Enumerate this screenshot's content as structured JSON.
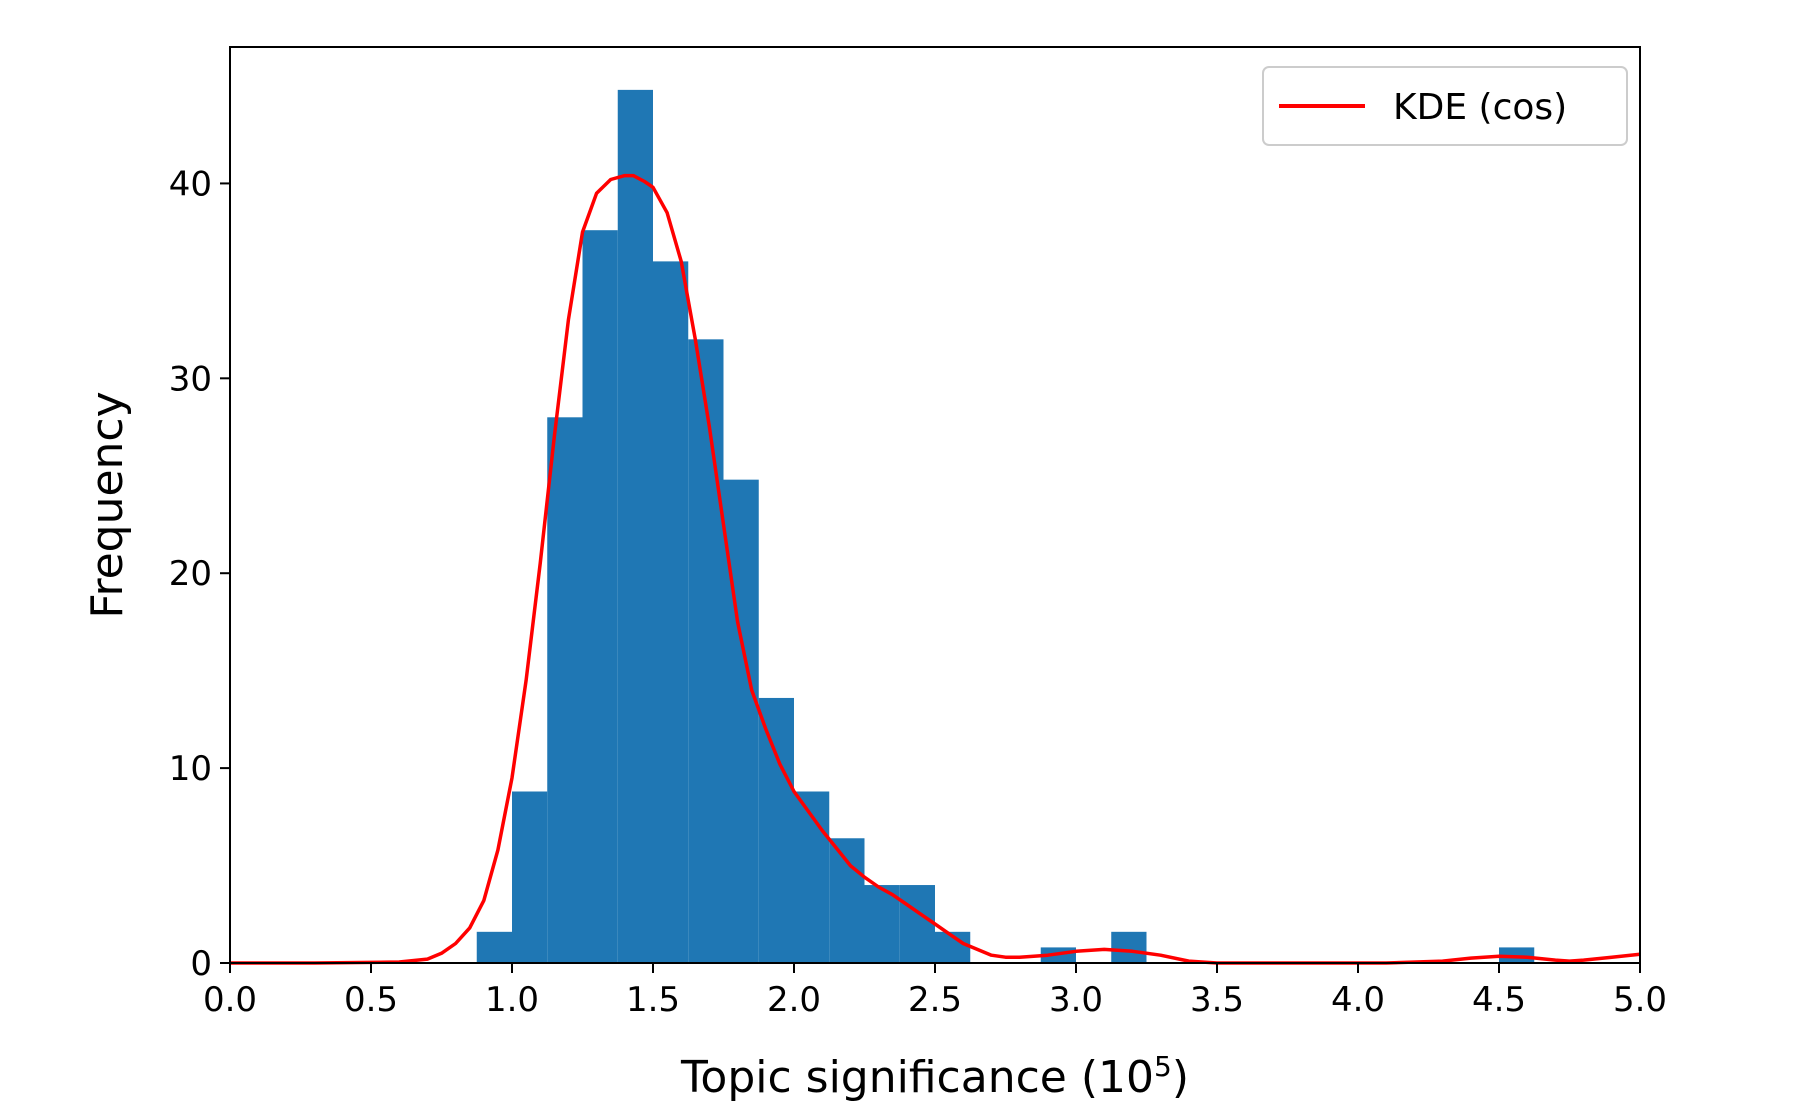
{
  "chart_data": {
    "type": "bar",
    "subtype": "histogram-with-kde",
    "xlabel": "Topic significance (10",
    "xlabel_superscript": "5",
    "xlabel_close": ")",
    "ylabel": "Frequency",
    "xlim": [
      0.0,
      5.0
    ],
    "ylim": [
      0,
      47
    ],
    "xticks": [
      "0.0",
      "0.5",
      "1.0",
      "1.5",
      "2.0",
      "2.5",
      "3.0",
      "3.5",
      "4.0",
      "4.5",
      "5.0"
    ],
    "yticks": [
      "0",
      "10",
      "20",
      "30",
      "40"
    ],
    "grid": false,
    "legend_position": "top-right",
    "histogram": {
      "color": "#1f77b4",
      "bins": [
        {
          "x0": 0.875,
          "x1": 1.0,
          "value": 1.6
        },
        {
          "x0": 1.0,
          "x1": 1.125,
          "value": 8.8
        },
        {
          "x0": 1.125,
          "x1": 1.25,
          "value": 28.0
        },
        {
          "x0": 1.25,
          "x1": 1.375,
          "value": 37.6
        },
        {
          "x0": 1.375,
          "x1": 1.5,
          "value": 44.8
        },
        {
          "x0": 1.5,
          "x1": 1.625,
          "value": 36.0
        },
        {
          "x0": 1.625,
          "x1": 1.75,
          "value": 32.0
        },
        {
          "x0": 1.75,
          "x1": 1.875,
          "value": 24.8
        },
        {
          "x0": 1.875,
          "x1": 2.0,
          "value": 13.6
        },
        {
          "x0": 2.0,
          "x1": 2.125,
          "value": 8.8
        },
        {
          "x0": 2.125,
          "x1": 2.25,
          "value": 6.4
        },
        {
          "x0": 2.25,
          "x1": 2.375,
          "value": 4.0
        },
        {
          "x0": 2.375,
          "x1": 2.5,
          "value": 4.0
        },
        {
          "x0": 2.5,
          "x1": 2.625,
          "value": 1.6
        },
        {
          "x0": 2.875,
          "x1": 3.0,
          "value": 0.8
        },
        {
          "x0": 3.125,
          "x1": 3.25,
          "value": 1.6
        },
        {
          "x0": 4.5,
          "x1": 4.625,
          "value": 0.8
        }
      ]
    },
    "series": [
      {
        "name": "KDE (cos)",
        "color": "#ff0000",
        "x": [
          0.0,
          0.3,
          0.6,
          0.7,
          0.75,
          0.8,
          0.85,
          0.9,
          0.95,
          1.0,
          1.05,
          1.1,
          1.15,
          1.2,
          1.25,
          1.3,
          1.35,
          1.4,
          1.43,
          1.47,
          1.5,
          1.55,
          1.6,
          1.65,
          1.7,
          1.75,
          1.8,
          1.85,
          1.9,
          1.95,
          2.0,
          2.05,
          2.1,
          2.15,
          2.2,
          2.25,
          2.3,
          2.35,
          2.4,
          2.45,
          2.5,
          2.55,
          2.6,
          2.65,
          2.7,
          2.75,
          2.8,
          2.9,
          3.0,
          3.1,
          3.2,
          3.3,
          3.4,
          3.5,
          3.7,
          3.9,
          4.1,
          4.3,
          4.4,
          4.5,
          4.6,
          4.7,
          4.75,
          4.8,
          4.9,
          5.0
        ],
        "y": [
          0.0,
          0.0,
          0.05,
          0.2,
          0.5,
          1.0,
          1.8,
          3.2,
          5.8,
          9.5,
          14.5,
          20.5,
          27.0,
          33.0,
          37.5,
          39.5,
          40.2,
          40.4,
          40.4,
          40.1,
          39.8,
          38.5,
          36.0,
          32.0,
          27.5,
          22.5,
          17.5,
          14.0,
          12.0,
          10.2,
          8.8,
          7.8,
          6.8,
          5.9,
          5.0,
          4.4,
          3.9,
          3.5,
          3.0,
          2.5,
          2.0,
          1.5,
          1.0,
          0.7,
          0.4,
          0.3,
          0.3,
          0.4,
          0.6,
          0.7,
          0.6,
          0.4,
          0.1,
          0.0,
          0.0,
          0.0,
          0.0,
          0.1,
          0.25,
          0.35,
          0.3,
          0.15,
          0.1,
          0.15,
          0.3,
          0.45
        ]
      }
    ]
  }
}
